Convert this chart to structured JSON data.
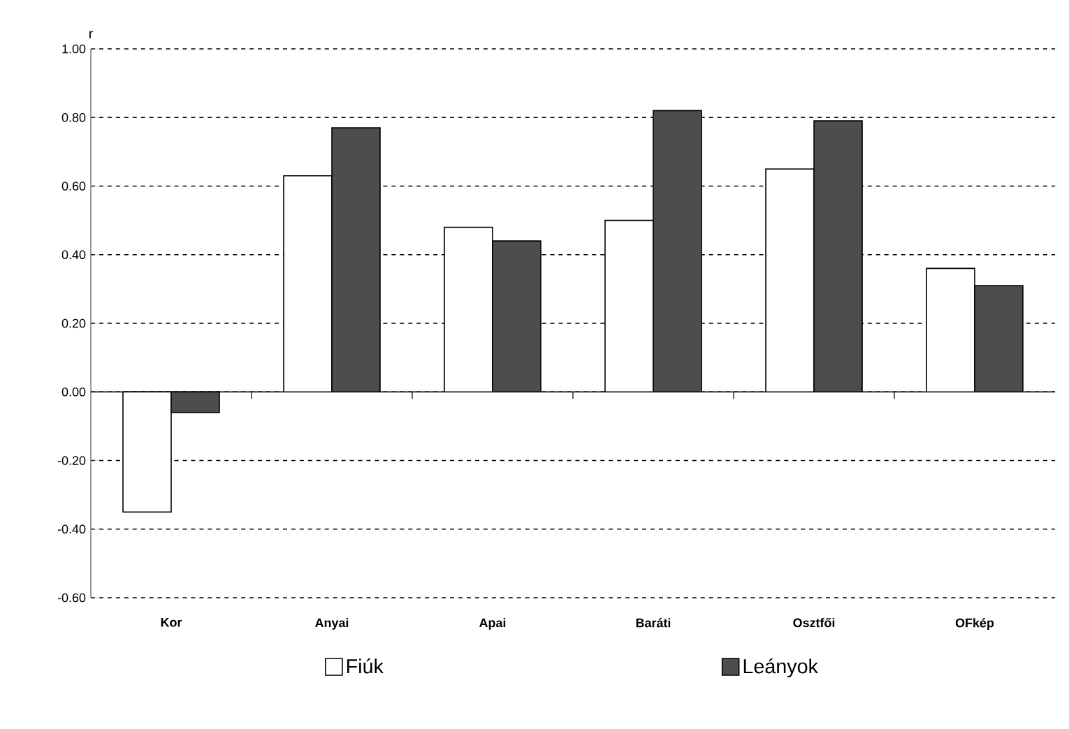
{
  "chart_data": {
    "type": "bar",
    "ylabel": "r",
    "categories": [
      "Kor",
      "Anyai",
      "Apai",
      "Baráti",
      "Osztfői",
      "OFkép"
    ],
    "series": [
      {
        "name": "Fiúk",
        "color": "#ffffff",
        "values": [
          -0.35,
          0.63,
          0.48,
          0.5,
          0.65,
          0.36
        ]
      },
      {
        "name": "Leányok",
        "color": "#4d4d4d",
        "values": [
          -0.06,
          0.77,
          0.44,
          0.82,
          0.79,
          0.31
        ]
      }
    ],
    "ylim": [
      -0.6,
      1.0
    ],
    "yticks": [
      {
        "value": -0.6,
        "label": "-0.60"
      },
      {
        "value": -0.4,
        "label": "-0.40"
      },
      {
        "value": -0.2,
        "label": "-0.20"
      },
      {
        "value": 0,
        "label": "0.00"
      },
      {
        "value": 0.2,
        "label": "0.20"
      },
      {
        "value": 0.4,
        "label": "0.40"
      },
      {
        "value": 0.6,
        "label": "0.60"
      },
      {
        "value": 0.8,
        "label": "0.80"
      },
      {
        "value": 1.0,
        "label": "1.00"
      }
    ],
    "grid": "y",
    "legend": "bottom",
    "line_style": "dashed"
  }
}
